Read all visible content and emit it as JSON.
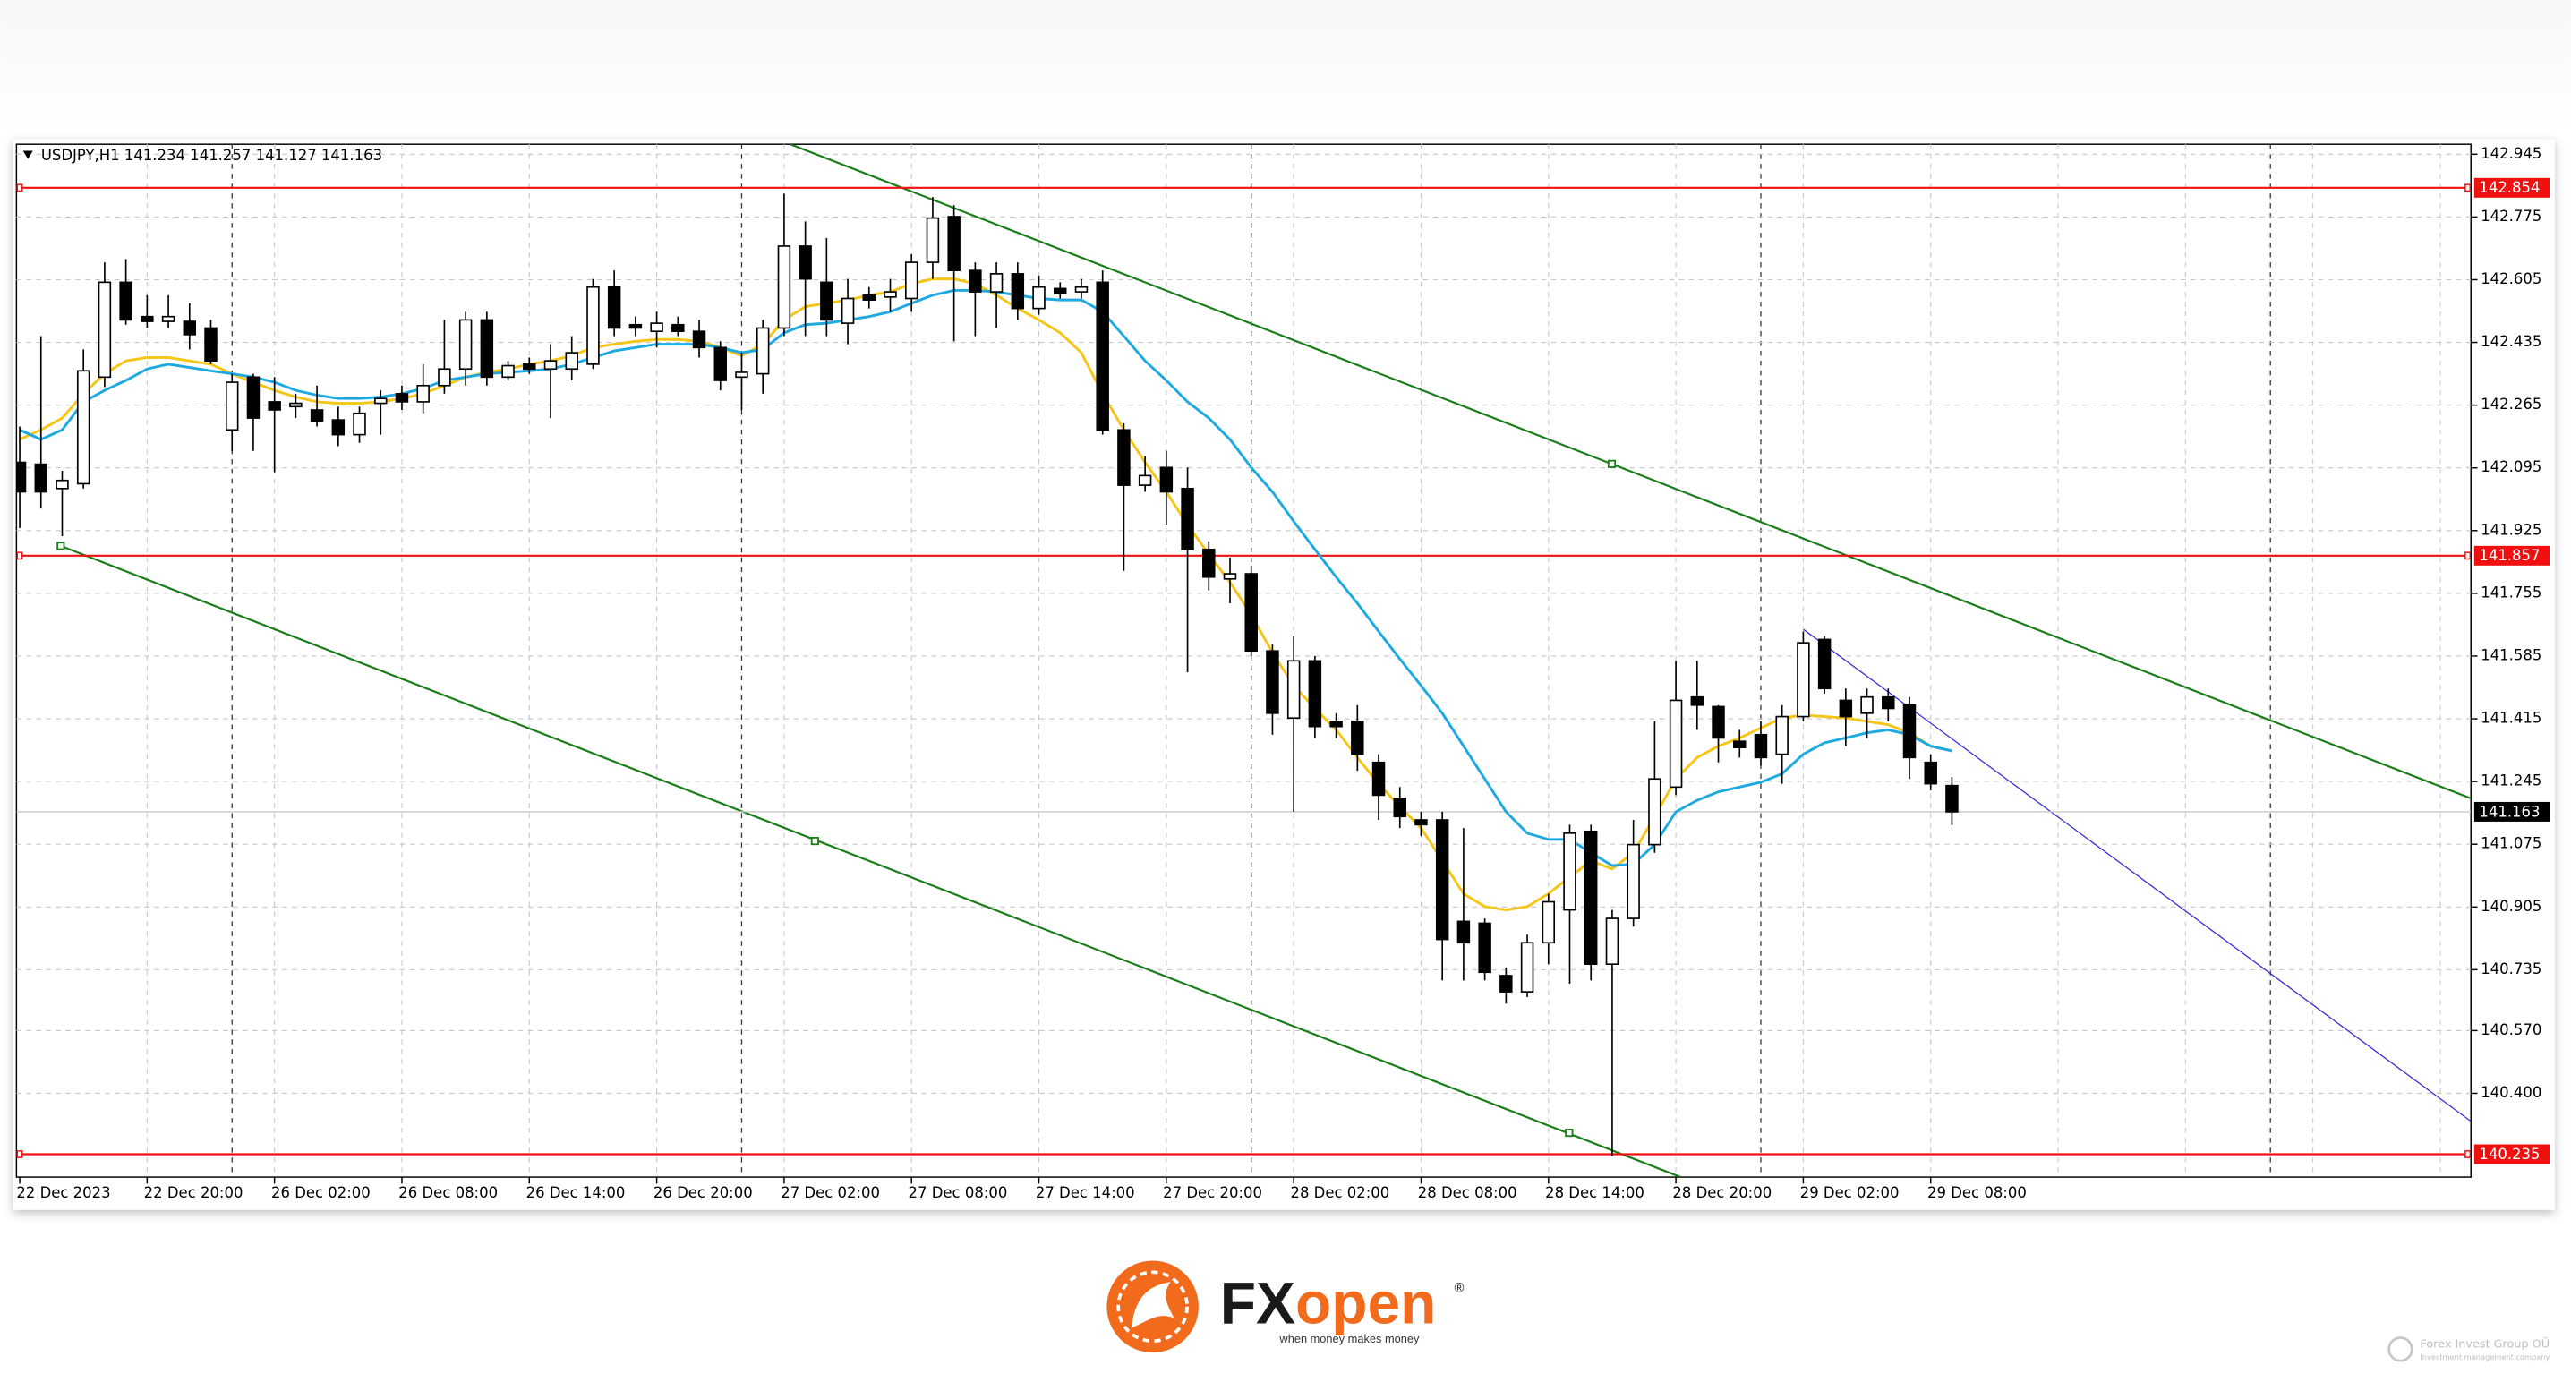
{
  "chart_data": {
    "type": "candlestick",
    "symbol": "USDJPY,H1",
    "categories": [
      "22 Dec 2023",
      null,
      null,
      null,
      null,
      null,
      "22 Dec 20:00",
      null,
      null,
      null,
      null,
      null,
      "26 Dec 02:00",
      null,
      null,
      null,
      null,
      null,
      "26 Dec 08:00",
      null,
      null,
      null,
      null,
      null,
      "26 Dec 14:00",
      null,
      null,
      null,
      null,
      null,
      "26 Dec 20:00",
      null,
      null,
      null,
      null,
      null,
      "27 Dec 02:00",
      null,
      null,
      null,
      null,
      null,
      "27 Dec 08:00",
      null,
      null,
      null,
      null,
      null,
      "27 Dec 14:00",
      null,
      null,
      null,
      null,
      null,
      "27 Dec 20:00",
      null,
      null,
      null,
      null,
      null,
      "28 Dec 02:00",
      null,
      null,
      null,
      null,
      null,
      "28 Dec 08:00",
      null,
      null,
      null,
      null,
      null,
      "28 Dec 14:00",
      null,
      null,
      null,
      null,
      null,
      "28 Dec 20:00",
      null,
      null,
      null,
      null,
      null,
      "29 Dec 02:00",
      null,
      null,
      null,
      null,
      null,
      "29 Dec 08:00",
      null
    ],
    "open": [
      142.11,
      142.105,
      142.039,
      142.052,
      142.341,
      142.598,
      142.505,
      142.492,
      142.492,
      142.474,
      142.198,
      142.341,
      142.274,
      142.261,
      142.252,
      142.225,
      142.185,
      142.27,
      142.296,
      142.274,
      142.318,
      142.363,
      142.496,
      142.341,
      142.376,
      142.363,
      142.363,
      142.376,
      142.585,
      142.483,
      142.465,
      142.483,
      142.465,
      142.421,
      142.341,
      142.35,
      142.474,
      142.696,
      142.598,
      142.487,
      142.563,
      142.558,
      142.554,
      142.652,
      142.776,
      142.63,
      142.572,
      142.621,
      142.527,
      142.581,
      142.572,
      142.598,
      142.198,
      142.048,
      142.096,
      142.039,
      141.874,
      141.794,
      141.808,
      141.599,
      141.417,
      141.572,
      141.408,
      141.408,
      141.297,
      141.199,
      141.141,
      141.141,
      140.866,
      140.861,
      140.719,
      140.675,
      140.808,
      140.897,
      141.11,
      140.75,
      140.874,
      141.074,
      141.23,
      141.474,
      141.448,
      141.354,
      141.372,
      141.319,
      141.421,
      141.63,
      141.465,
      141.43,
      141.474,
      141.452,
      141.297,
      141.234
    ],
    "high": [
      142.207,
      142.452,
      142.087,
      142.416,
      142.652,
      142.661,
      142.563,
      142.563,
      142.541,
      142.496,
      142.35,
      142.35,
      142.341,
      142.296,
      142.318,
      142.261,
      142.261,
      142.305,
      142.318,
      142.376,
      142.496,
      142.518,
      142.518,
      142.385,
      142.394,
      142.43,
      142.452,
      142.607,
      142.63,
      142.505,
      142.518,
      142.505,
      142.496,
      142.438,
      142.407,
      142.496,
      142.838,
      142.763,
      142.718,
      142.607,
      142.585,
      142.607,
      142.674,
      142.829,
      142.807,
      142.652,
      142.652,
      142.652,
      142.616,
      142.598,
      142.607,
      142.63,
      142.216,
      142.127,
      142.141,
      142.096,
      141.896,
      141.852,
      141.83,
      141.616,
      141.639,
      141.585,
      141.43,
      141.452,
      141.319,
      141.23,
      141.163,
      141.163,
      141.119,
      140.874,
      140.741,
      140.83,
      140.941,
      141.128,
      141.128,
      140.897,
      141.141,
      141.408,
      141.572,
      141.572,
      141.452,
      141.385,
      141.408,
      141.452,
      141.652,
      141.639,
      141.497,
      141.497,
      141.497,
      141.474,
      141.319,
      141.257
    ],
    "low": [
      141.932,
      141.985,
      141.91,
      142.039,
      142.314,
      142.483,
      142.474,
      142.474,
      142.416,
      142.376,
      142.141,
      142.141,
      142.083,
      142.23,
      142.207,
      142.154,
      142.163,
      142.185,
      142.252,
      142.243,
      142.296,
      142.318,
      142.318,
      142.332,
      142.35,
      142.23,
      142.332,
      142.363,
      142.452,
      142.452,
      142.421,
      142.452,
      142.394,
      142.305,
      142.252,
      142.296,
      142.452,
      142.452,
      142.452,
      142.43,
      142.527,
      142.518,
      142.518,
      142.607,
      142.438,
      142.452,
      142.474,
      142.496,
      142.51,
      142.554,
      142.554,
      142.185,
      141.816,
      142.03,
      141.941,
      141.541,
      141.763,
      141.728,
      141.585,
      141.372,
      141.163,
      141.363,
      141.363,
      141.274,
      141.141,
      141.119,
      141.097,
      140.706,
      140.706,
      140.706,
      140.643,
      140.661,
      140.75,
      140.697,
      140.706,
      140.23,
      140.852,
      141.052,
      141.208,
      141.385,
      141.297,
      141.31,
      141.288,
      141.239,
      141.408,
      141.483,
      141.341,
      141.363,
      141.408,
      141.252,
      141.221,
      141.127
    ],
    "close": [
      142.03,
      142.03,
      142.061,
      142.358,
      142.598,
      142.496,
      142.492,
      142.505,
      142.456,
      142.385,
      142.327,
      142.23,
      142.252,
      142.27,
      142.221,
      142.185,
      142.243,
      142.283,
      142.274,
      142.318,
      142.363,
      142.496,
      142.341,
      142.372,
      142.363,
      142.385,
      142.407,
      142.585,
      142.474,
      142.474,
      142.487,
      142.465,
      142.421,
      142.332,
      142.354,
      142.474,
      142.696,
      142.607,
      142.496,
      142.554,
      142.55,
      142.572,
      142.652,
      142.772,
      142.63,
      142.572,
      142.621,
      142.527,
      142.585,
      142.567,
      142.585,
      142.198,
      142.048,
      142.074,
      142.03,
      141.874,
      141.799,
      141.808,
      141.599,
      141.43,
      141.572,
      141.394,
      141.394,
      141.319,
      141.208,
      141.15,
      141.128,
      140.817,
      140.808,
      140.728,
      140.675,
      140.808,
      140.919,
      141.105,
      140.75,
      140.874,
      141.074,
      141.252,
      141.465,
      141.452,
      141.363,
      141.337,
      141.31,
      141.421,
      141.621,
      141.497,
      141.421,
      141.474,
      141.443,
      141.31,
      141.239,
      141.163
    ],
    "bull_color": "#ffffff",
    "bear_color": "#000000",
    "moving_averages": [
      {
        "color": "#f5c518",
        "values": [
          142.172,
          142.198,
          142.23,
          142.296,
          142.35,
          142.385,
          142.394,
          142.394,
          142.385,
          142.376,
          142.35,
          142.327,
          142.305,
          142.287,
          142.274,
          142.27,
          142.27,
          142.274,
          142.283,
          142.296,
          142.318,
          142.341,
          142.354,
          142.363,
          142.376,
          142.385,
          142.399,
          142.421,
          142.43,
          142.438,
          142.443,
          142.443,
          142.438,
          142.421,
          142.399,
          142.43,
          142.496,
          142.532,
          142.541,
          142.55,
          142.563,
          142.572,
          142.594,
          142.607,
          142.607,
          142.594,
          142.563,
          142.527,
          142.496,
          142.461,
          142.407,
          142.296,
          142.198,
          142.11,
          142.03,
          141.941,
          141.861,
          141.785,
          141.697,
          141.594,
          141.505,
          141.443,
          141.385,
          141.31,
          141.239,
          141.177,
          141.119,
          141.03,
          140.941,
          140.906,
          140.897,
          140.906,
          140.941,
          140.986,
          141.03,
          141.008,
          141.052,
          141.15,
          141.252,
          141.31,
          141.341,
          141.363,
          141.39,
          141.417,
          141.425,
          141.421,
          141.417,
          141.408,
          141.399,
          141.377,
          141.341,
          141.328
        ]
      },
      {
        "color": "#1ea9e1",
        "values": [
          142.198,
          142.172,
          142.198,
          142.274,
          142.305,
          142.332,
          142.363,
          142.376,
          142.367,
          142.358,
          142.35,
          142.341,
          142.327,
          142.305,
          142.292,
          142.283,
          142.283,
          142.287,
          142.296,
          142.31,
          142.332,
          142.341,
          142.35,
          142.354,
          142.358,
          142.363,
          142.376,
          142.394,
          142.412,
          142.421,
          142.43,
          142.43,
          142.43,
          142.421,
          142.407,
          142.416,
          142.461,
          142.483,
          142.487,
          142.496,
          142.505,
          142.518,
          142.541,
          142.563,
          142.576,
          142.576,
          142.572,
          142.563,
          142.554,
          142.55,
          142.55,
          142.518,
          142.452,
          142.385,
          142.332,
          142.274,
          142.23,
          142.172,
          142.096,
          142.03,
          141.95,
          141.874,
          141.799,
          141.728,
          141.652,
          141.577,
          141.505,
          141.43,
          141.341,
          141.252,
          141.163,
          141.105,
          141.088,
          141.088,
          141.052,
          141.017,
          141.021,
          141.074,
          141.163,
          141.194,
          141.217,
          141.23,
          141.243,
          141.266,
          141.319,
          141.35,
          141.363,
          141.377,
          141.385,
          141.372,
          141.341,
          141.328
        ]
      }
    ],
    "levels": [
      {
        "value": 142.854,
        "color": "#f01010"
      },
      {
        "value": 141.857,
        "color": "#f01010"
      },
      {
        "value": 140.235,
        "color": "#f01010"
      }
    ],
    "price_line_color": "#c8c8c8",
    "ylim": [
      140.173,
      142.972
    ],
    "yticks": [
      142.945,
      142.775,
      142.605,
      142.435,
      142.265,
      142.095,
      141.925,
      141.755,
      141.585,
      141.415,
      141.245,
      141.075,
      140.905,
      140.735,
      {
        "value": 140.57,
        "label": "140.570"
      },
      {
        "value": 140.4,
        "label": "140.400"
      }
    ],
    "grid": true
  },
  "branding": {
    "logo_fx": "FX",
    "logo_open": "open",
    "registered": "®",
    "tagline": "when money makes money",
    "company": "Forex Invest Group OÜ",
    "company_sub": "Investment management company"
  }
}
